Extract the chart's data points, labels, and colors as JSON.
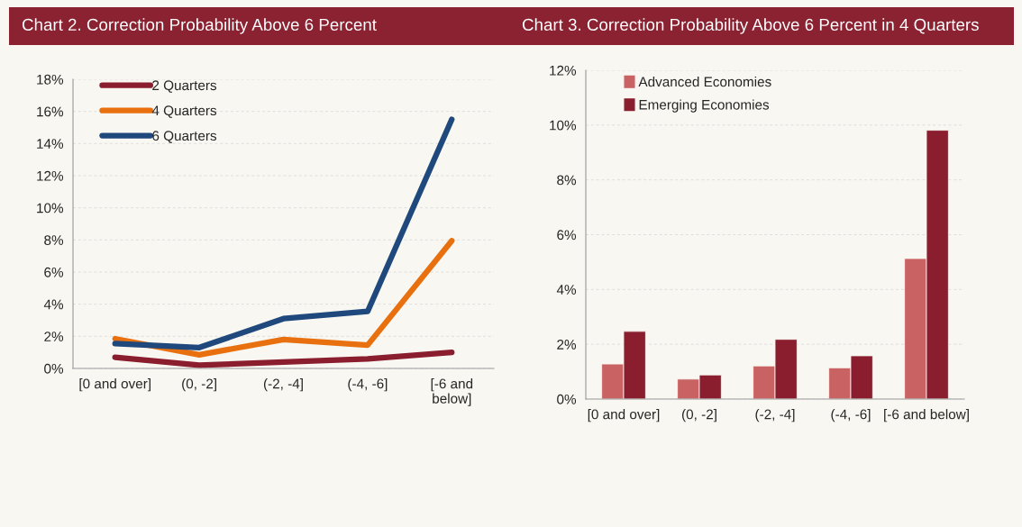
{
  "chart_data": [
    {
      "type": "line",
      "title": "Chart 2. Correction Probability Above 6 Percent",
      "categories": [
        "[0 and over]",
        "(0, -2]",
        "(-2, -4]",
        "(-4, -6]",
        "[-6 and\nbelow]"
      ],
      "series": [
        {
          "name": "2 Quarters",
          "color": "#8b1e2e",
          "values": [
            0.7,
            0.2,
            0.4,
            0.6,
            1.0
          ]
        },
        {
          "name": "4 Quarters",
          "color": "#e8700f",
          "values": [
            1.85,
            0.85,
            1.8,
            1.45,
            7.95
          ]
        },
        {
          "name": "6 Quarters",
          "color": "#1f497d",
          "values": [
            1.55,
            1.3,
            3.1,
            3.55,
            15.5
          ]
        }
      ],
      "ylim": [
        0,
        18
      ],
      "yticks": [
        {
          "value": 0,
          "label": "0%"
        },
        {
          "value": 2,
          "label": "2%"
        },
        {
          "value": 4,
          "label": "4%"
        },
        {
          "value": 6,
          "label": "6%"
        },
        {
          "value": 8,
          "label": "8%"
        },
        {
          "value": 10,
          "label": "10%"
        },
        {
          "value": 12,
          "label": "12%"
        },
        {
          "value": 14,
          "label": "14%"
        },
        {
          "value": 16,
          "label": "16%"
        },
        {
          "value": 18,
          "label": "18%"
        }
      ],
      "grid": "y",
      "legend": "top left",
      "line_style": "solid",
      "marker": "none"
    },
    {
      "type": "bar",
      "title": "Chart 3. Correction Probability Above 6 Percent in 4 Quarters",
      "categories": [
        "[0 and over]",
        "(0, -2]",
        "(-2, -4]",
        "(-4, -6]",
        "[-6 and below]"
      ],
      "series": [
        {
          "name": "Advanced Economies",
          "color": "#c96262",
          "values": [
            1.28,
            0.73,
            1.21,
            1.14,
            5.13
          ]
        },
        {
          "name": "Emerging Economies",
          "color": "#8b1e2e",
          "values": [
            2.47,
            0.88,
            2.18,
            1.58,
            9.81
          ]
        }
      ],
      "ylim": [
        0,
        12
      ],
      "yticks": [
        {
          "value": 0,
          "label": "0%"
        },
        {
          "value": 2,
          "label": "2%"
        },
        {
          "value": 4,
          "label": "4%"
        },
        {
          "value": 6,
          "label": "6%"
        },
        {
          "value": 8,
          "label": "8%"
        },
        {
          "value": 10,
          "label": "10%"
        },
        {
          "value": 12,
          "label": "12%"
        }
      ],
      "grid": "y",
      "legend": "top left"
    }
  ]
}
